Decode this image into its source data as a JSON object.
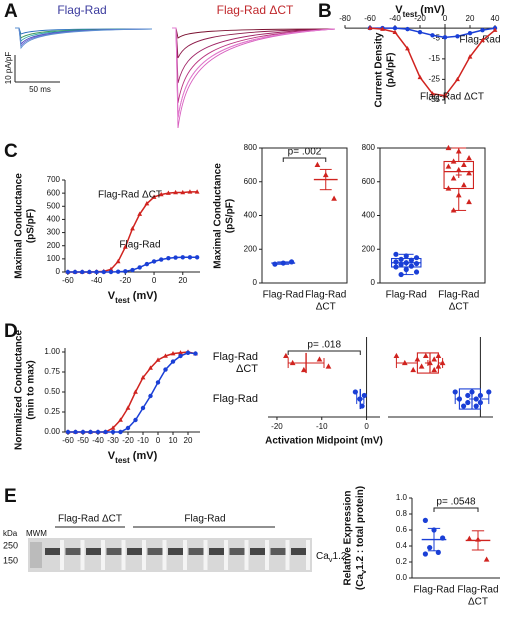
{
  "figure": {
    "panels": [
      "A",
      "B",
      "C",
      "D",
      "E"
    ],
    "traces": {
      "left_label": "Flag-Rad",
      "right_label": "Flag-Rad ΔCT",
      "scale_y": "10 pA/pF",
      "scale_x": "50 ms"
    },
    "blot": {
      "kda": "kDa",
      "mwm": "MWM",
      "marker_250": "250",
      "marker_150": "150",
      "group_dct": "Flag-Rad ΔCT",
      "group_rad": "Flag-Rad",
      "band": {
        "main": "Ca",
        "sub": "v",
        "rest": "1.2"
      }
    }
  },
  "chart_data": [
    {
      "type": "line",
      "xlabel": {
        "main": "V",
        "sub": "test",
        "rest": " (mV)"
      },
      "ylabel": [
        "Current Density",
        "(pA/pF)"
      ],
      "x": [
        -60,
        -50,
        -40,
        -30,
        -20,
        -10,
        0,
        10,
        20,
        30,
        40
      ],
      "series": [
        {
          "name": "Flag-Rad",
          "color": "#1a3fd6",
          "marker": "circle",
          "values": [
            0,
            0,
            0,
            -0.5,
            -2,
            -3.5,
            -4.5,
            -4,
            -2.5,
            -1,
            0
          ]
        },
        {
          "name": "Flag-Rad ΔCT",
          "color": "#d0231f",
          "marker": "triangle",
          "values": [
            0,
            -0.5,
            -2,
            -10,
            -24,
            -32,
            -33,
            -25,
            -14,
            -6,
            -1
          ]
        }
      ],
      "xlim": [
        -80,
        40
      ],
      "xticks": [
        -80,
        -60,
        -40,
        -20,
        0,
        20,
        40
      ],
      "ylim": [
        -37,
        2
      ],
      "yticks": [
        -5,
        -15,
        -25,
        -35
      ]
    },
    {
      "type": "line",
      "xlabel": {
        "main": "V",
        "sub": "test",
        "rest": " (mV)"
      },
      "ylabel": [
        "Maximal Conductance",
        "(pS/pF)"
      ],
      "x": [
        -60,
        -55,
        -50,
        -45,
        -40,
        -35,
        -30,
        -25,
        -20,
        -15,
        -10,
        -5,
        0,
        5,
        10,
        15,
        20,
        25,
        30
      ],
      "series": [
        {
          "name": "Flag-Rad ΔCT",
          "color": "#d0231f",
          "marker": "triangle",
          "values": [
            0,
            0,
            0,
            0,
            2,
            5,
            20,
            80,
            190,
            330,
            440,
            520,
            570,
            590,
            600,
            605,
            605,
            610,
            610
          ]
        },
        {
          "name": "Flag-Rad",
          "color": "#1a3fd6",
          "marker": "circle",
          "values": [
            0,
            0,
            0,
            0,
            0,
            0,
            0,
            2,
            5,
            15,
            35,
            60,
            80,
            95,
            105,
            110,
            112,
            112,
            112
          ]
        }
      ],
      "xlim": [
        -62,
        32
      ],
      "xticks": [
        -60,
        -40,
        -20,
        0,
        20
      ],
      "ylim": [
        0,
        700
      ],
      "yticks": [
        0,
        100,
        200,
        300,
        400,
        500,
        600,
        700
      ]
    },
    {
      "type": "strip",
      "ylabel": [
        "Maximal Conductance",
        "(pS/pF)"
      ],
      "annotation": "p= .002",
      "groups": [
        {
          "name": [
            "Flag-Rad"
          ],
          "color": "#1a3fd6",
          "marker": "circle",
          "values": [
            112,
            118,
            125
          ],
          "mean": 118,
          "error": 7
        },
        {
          "name": [
            "Flag-Rad",
            "ΔCT"
          ],
          "color": "#d0231f",
          "marker": "triangle",
          "values": [
            700,
            640,
            500
          ],
          "mean": 613,
          "error": 60
        }
      ],
      "ylim": [
        0,
        800
      ],
      "yticks": [
        0,
        200,
        400,
        600,
        800
      ]
    },
    {
      "type": "box",
      "groups": [
        {
          "name": [
            "Flag-Rad"
          ],
          "color": "#1a3fd6",
          "marker": "circle",
          "values": [
            170,
            160,
            150,
            140,
            135,
            125,
            120,
            115,
            110,
            100,
            95,
            80,
            65,
            50
          ],
          "min": 50,
          "q1": 95,
          "median": 120,
          "q3": 145,
          "max": 170,
          "mean": 118
        },
        {
          "name": [
            "Flag-Rad",
            "ΔCT"
          ],
          "color": "#d0231f",
          "marker": "triangle",
          "values": [
            800,
            780,
            740,
            720,
            700,
            690,
            670,
            650,
            620,
            580,
            560,
            520,
            480,
            430
          ],
          "min": 430,
          "q1": 560,
          "median": 660,
          "q3": 720,
          "max": 800,
          "mean": 640
        }
      ],
      "ylim": [
        0,
        800
      ],
      "yticks": [
        0,
        200,
        400,
        600,
        800
      ]
    },
    {
      "type": "line",
      "xlabel": {
        "main": "V",
        "sub": "test",
        "rest": " (mV)"
      },
      "ylabel": [
        "Normalized Conductance",
        "(min to max)"
      ],
      "x": [
        -60,
        -55,
        -50,
        -45,
        -40,
        -35,
        -30,
        -25,
        -20,
        -15,
        -10,
        -5,
        0,
        5,
        10,
        15,
        20,
        25
      ],
      "series": [
        {
          "color": "#d0231f",
          "marker": "triangle",
          "values": [
            0,
            0,
            0,
            0,
            0,
            0,
            0.05,
            0.15,
            0.3,
            0.5,
            0.68,
            0.8,
            0.9,
            0.95,
            0.98,
            0.99,
            1,
            0.98
          ]
        },
        {
          "color": "#1a3fd6",
          "marker": "circle",
          "values": [
            0,
            0,
            0,
            0,
            0,
            0,
            0,
            0,
            0.05,
            0.15,
            0.3,
            0.45,
            0.62,
            0.78,
            0.88,
            0.95,
            0.99,
            0.98
          ]
        }
      ],
      "xlim": [
        -62,
        28
      ],
      "xticks": [
        -60,
        -50,
        -40,
        -30,
        -20,
        -10,
        0,
        10,
        20
      ],
      "ylim": [
        0,
        1.05
      ],
      "yticks": [
        {
          "value": 0,
          "label": "0.00"
        },
        {
          "value": 0.25,
          "label": "0.25"
        },
        {
          "value": 0.5,
          "label": "0.50"
        },
        {
          "value": 0.75,
          "label": "0.75"
        },
        {
          "value": 1,
          "label": "1.00"
        }
      ]
    },
    {
      "type": "strip",
      "orientation": "horizontal",
      "xlabel": "Activation Midpoint (mV)",
      "annotation": "p= .018",
      "groups": [
        {
          "name": [
            "Flag-Rad",
            "ΔCT"
          ],
          "color": "#d0231f",
          "marker": "triangle",
          "values": [
            -18,
            -16.5,
            -14,
            -10.5,
            -8.5
          ],
          "mean": -13.5,
          "error": 4
        },
        {
          "name": [
            "Flag-Rad"
          ],
          "color": "#1a3fd6",
          "marker": "circle",
          "values": [
            -2.5,
            -1.5,
            -1,
            -0.5
          ],
          "mean": -1.4,
          "error": 0.8
        }
      ],
      "xlim": [
        -22,
        3
      ],
      "xticks": [
        -20,
        -10,
        0
      ]
    },
    {
      "type": "box",
      "orientation": "horizontal",
      "groups": [
        {
          "color": "#d0231f",
          "marker": "triangle",
          "values": [
            -20,
            -18,
            -16,
            -15,
            -14,
            -13,
            -12,
            -11,
            -11,
            -10,
            -10,
            -9
          ],
          "min": -20,
          "q1": -15,
          "median": -12,
          "q3": -10,
          "max": -9,
          "mean": -12.5
        },
        {
          "color": "#1a3fd6",
          "marker": "circle",
          "values": [
            -6,
            -5,
            -4,
            -3,
            -3,
            -2,
            -1,
            -1,
            0,
            0,
            2
          ],
          "min": -6,
          "q1": -5,
          "median": -2,
          "q3": 0,
          "max": 2,
          "mean": -2
        }
      ],
      "xlim": [
        -22,
        3
      ]
    },
    {
      "type": "strip",
      "ylabel": [
        "Relative Expression",
        {
          "main": "(Ca",
          "sub": "v",
          "rest": "1.2 : total protein)"
        }
      ],
      "annotation": "p= .0548",
      "groups": [
        {
          "name": [
            "Flag-Rad"
          ],
          "color": "#1a3fd6",
          "marker": "circle",
          "values": [
            0.72,
            0.6,
            0.5,
            0.38,
            0.32,
            0.3
          ],
          "mean": 0.48,
          "error": 0.14
        },
        {
          "name": [
            "Flag-Rad",
            "ΔCT"
          ],
          "color": "#d0231f",
          "marker": "triangle",
          "values": [
            0.49,
            0.48,
            0.23
          ],
          "mean": 0.47,
          "error": 0.12
        }
      ],
      "ylim": [
        0,
        1
      ],
      "yticks": [
        {
          "value": 0,
          "label": "0.0"
        },
        {
          "value": 0.2,
          "label": "0.2"
        },
        {
          "value": 0.4,
          "label": "0.4"
        },
        {
          "value": 0.6,
          "label": "0.6"
        },
        {
          "value": 0.8,
          "label": "0.8"
        },
        {
          "value": 1,
          "label": "1.0"
        }
      ]
    }
  ]
}
